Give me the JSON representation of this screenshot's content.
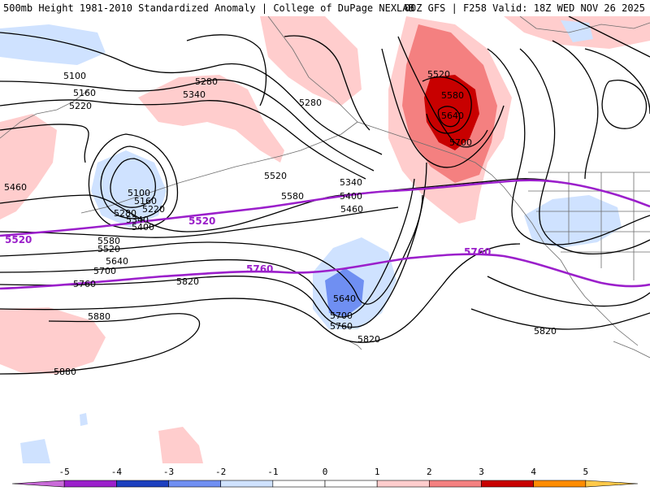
{
  "header": {
    "title": "500mb Height 1981-2010 Standardized Anomaly | College of DuPage NEXLAB",
    "valid": "00Z GFS | F258 Valid: 18Z WED NOV 26 2025"
  },
  "colors": {
    "contour": "#000000",
    "climo_line": "#9b1fcb",
    "coast": "#6d6d6d",
    "anom_pos_1": "#ffcdcd",
    "anom_pos_2": "#f48080",
    "anom_pos_3": "#c80000",
    "anom_neg_1": "#cfe2ff",
    "anom_neg_2": "#6f8ff2",
    "background": "#ffffff"
  },
  "map": {
    "height_labels": [
      {
        "text": "5100"
      },
      {
        "text": "5160"
      },
      {
        "text": "5220"
      },
      {
        "text": "5280"
      },
      {
        "text": "5340"
      },
      {
        "text": "5280"
      },
      {
        "text": "5100"
      },
      {
        "text": "5160"
      },
      {
        "text": "5220"
      },
      {
        "text": "5280"
      },
      {
        "text": "5340"
      },
      {
        "text": "5400"
      },
      {
        "text": "5460"
      },
      {
        "text": "5520"
      },
      {
        "text": "5580"
      },
      {
        "text": "5640"
      },
      {
        "text": "5700"
      },
      {
        "text": "5760"
      },
      {
        "text": "5820"
      },
      {
        "text": "5880"
      },
      {
        "text": "5880"
      },
      {
        "text": "5520"
      },
      {
        "text": "5580"
      },
      {
        "text": "5340"
      },
      {
        "text": "5400"
      },
      {
        "text": "5460"
      },
      {
        "text": "5520"
      },
      {
        "text": "5580"
      },
      {
        "text": "5640"
      },
      {
        "text": "5700"
      },
      {
        "text": "5640"
      },
      {
        "text": "5700"
      },
      {
        "text": "5760"
      },
      {
        "text": "5820"
      },
      {
        "text": "5820"
      }
    ],
    "climo_labels": [
      "5520",
      "5520",
      "5760",
      "5760"
    ]
  },
  "colorbar": {
    "ticks": [
      "-5",
      "-4",
      "-3",
      "-2",
      "-1",
      "0",
      "1",
      "2",
      "3",
      "4",
      "5"
    ],
    "segments": [
      {
        "color": "#c96ad8"
      },
      {
        "color": "#9b1fcb"
      },
      {
        "color": "#1c3fbf"
      },
      {
        "color": "#6f8ff2"
      },
      {
        "color": "#cfe2ff"
      },
      {
        "color": "#ffffff"
      },
      {
        "color": "#ffffff"
      },
      {
        "color": "#ffcdcd"
      },
      {
        "color": "#f48080"
      },
      {
        "color": "#c80000"
      },
      {
        "color": "#ff8c00"
      },
      {
        "color": "#ffc94a"
      }
    ]
  }
}
